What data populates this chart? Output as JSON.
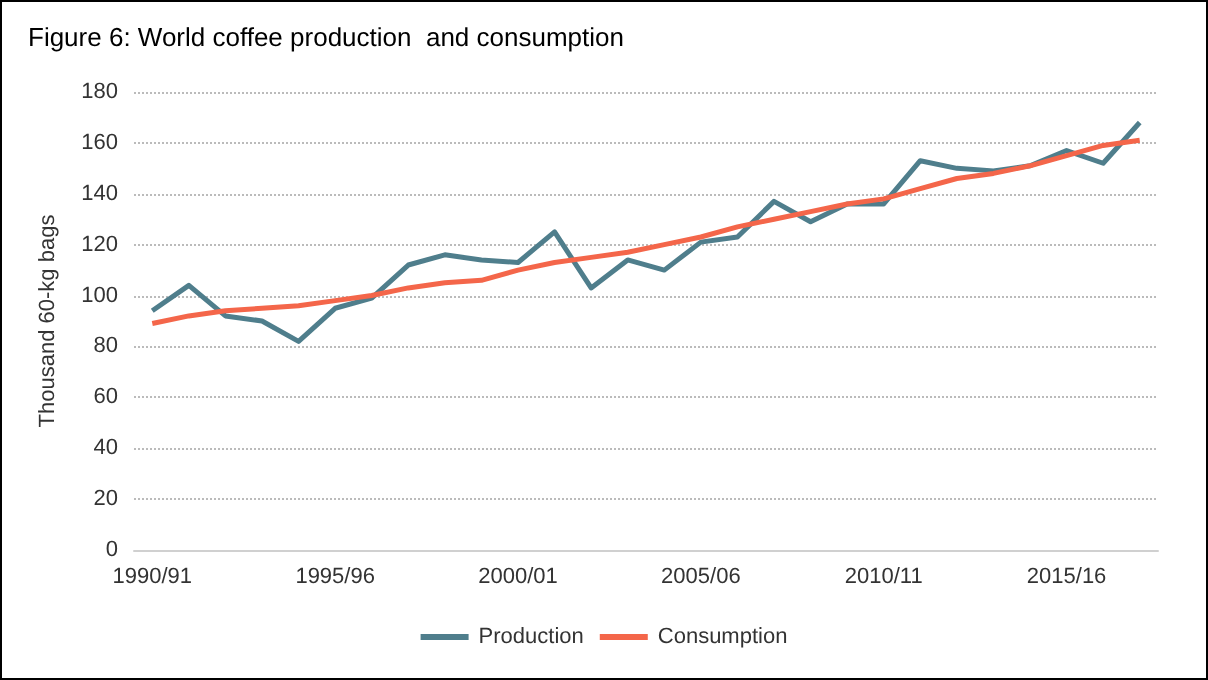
{
  "chart_data": {
    "type": "line",
    "title": "Figure 6: World coffee production  and consumption",
    "ylabel": "Thousand 60-kg bags",
    "categories": [
      "1990/91",
      null,
      null,
      null,
      null,
      "1995/96",
      null,
      null,
      null,
      null,
      "2000/01",
      null,
      null,
      null,
      null,
      "2005/06",
      null,
      null,
      null,
      null,
      "2010/11",
      null,
      null,
      null,
      null,
      "2015/16",
      null,
      null
    ],
    "series": [
      {
        "name": "Production",
        "color": "#4f7e8c",
        "values": [
          94,
          104,
          92,
          90,
          82,
          95,
          99,
          112,
          116,
          114,
          113,
          125,
          103,
          114,
          110,
          121,
          123,
          137,
          129,
          136,
          136,
          153,
          150,
          149,
          151,
          157,
          152,
          168
        ]
      },
      {
        "name": "Consumption",
        "color": "#f4664a",
        "values": [
          89,
          92,
          94,
          95,
          96,
          98,
          100,
          103,
          105,
          106,
          110,
          113,
          115,
          117,
          120,
          123,
          127,
          130,
          133,
          136,
          138,
          142,
          146,
          148,
          151,
          155,
          159,
          161
        ]
      }
    ],
    "ylim": [
      0,
      180
    ],
    "yticks": [
      0,
      20,
      40,
      60,
      80,
      100,
      120,
      140,
      160,
      180
    ],
    "grid": "y",
    "legend": "bottom",
    "marker": "none",
    "line_style": "solid"
  }
}
